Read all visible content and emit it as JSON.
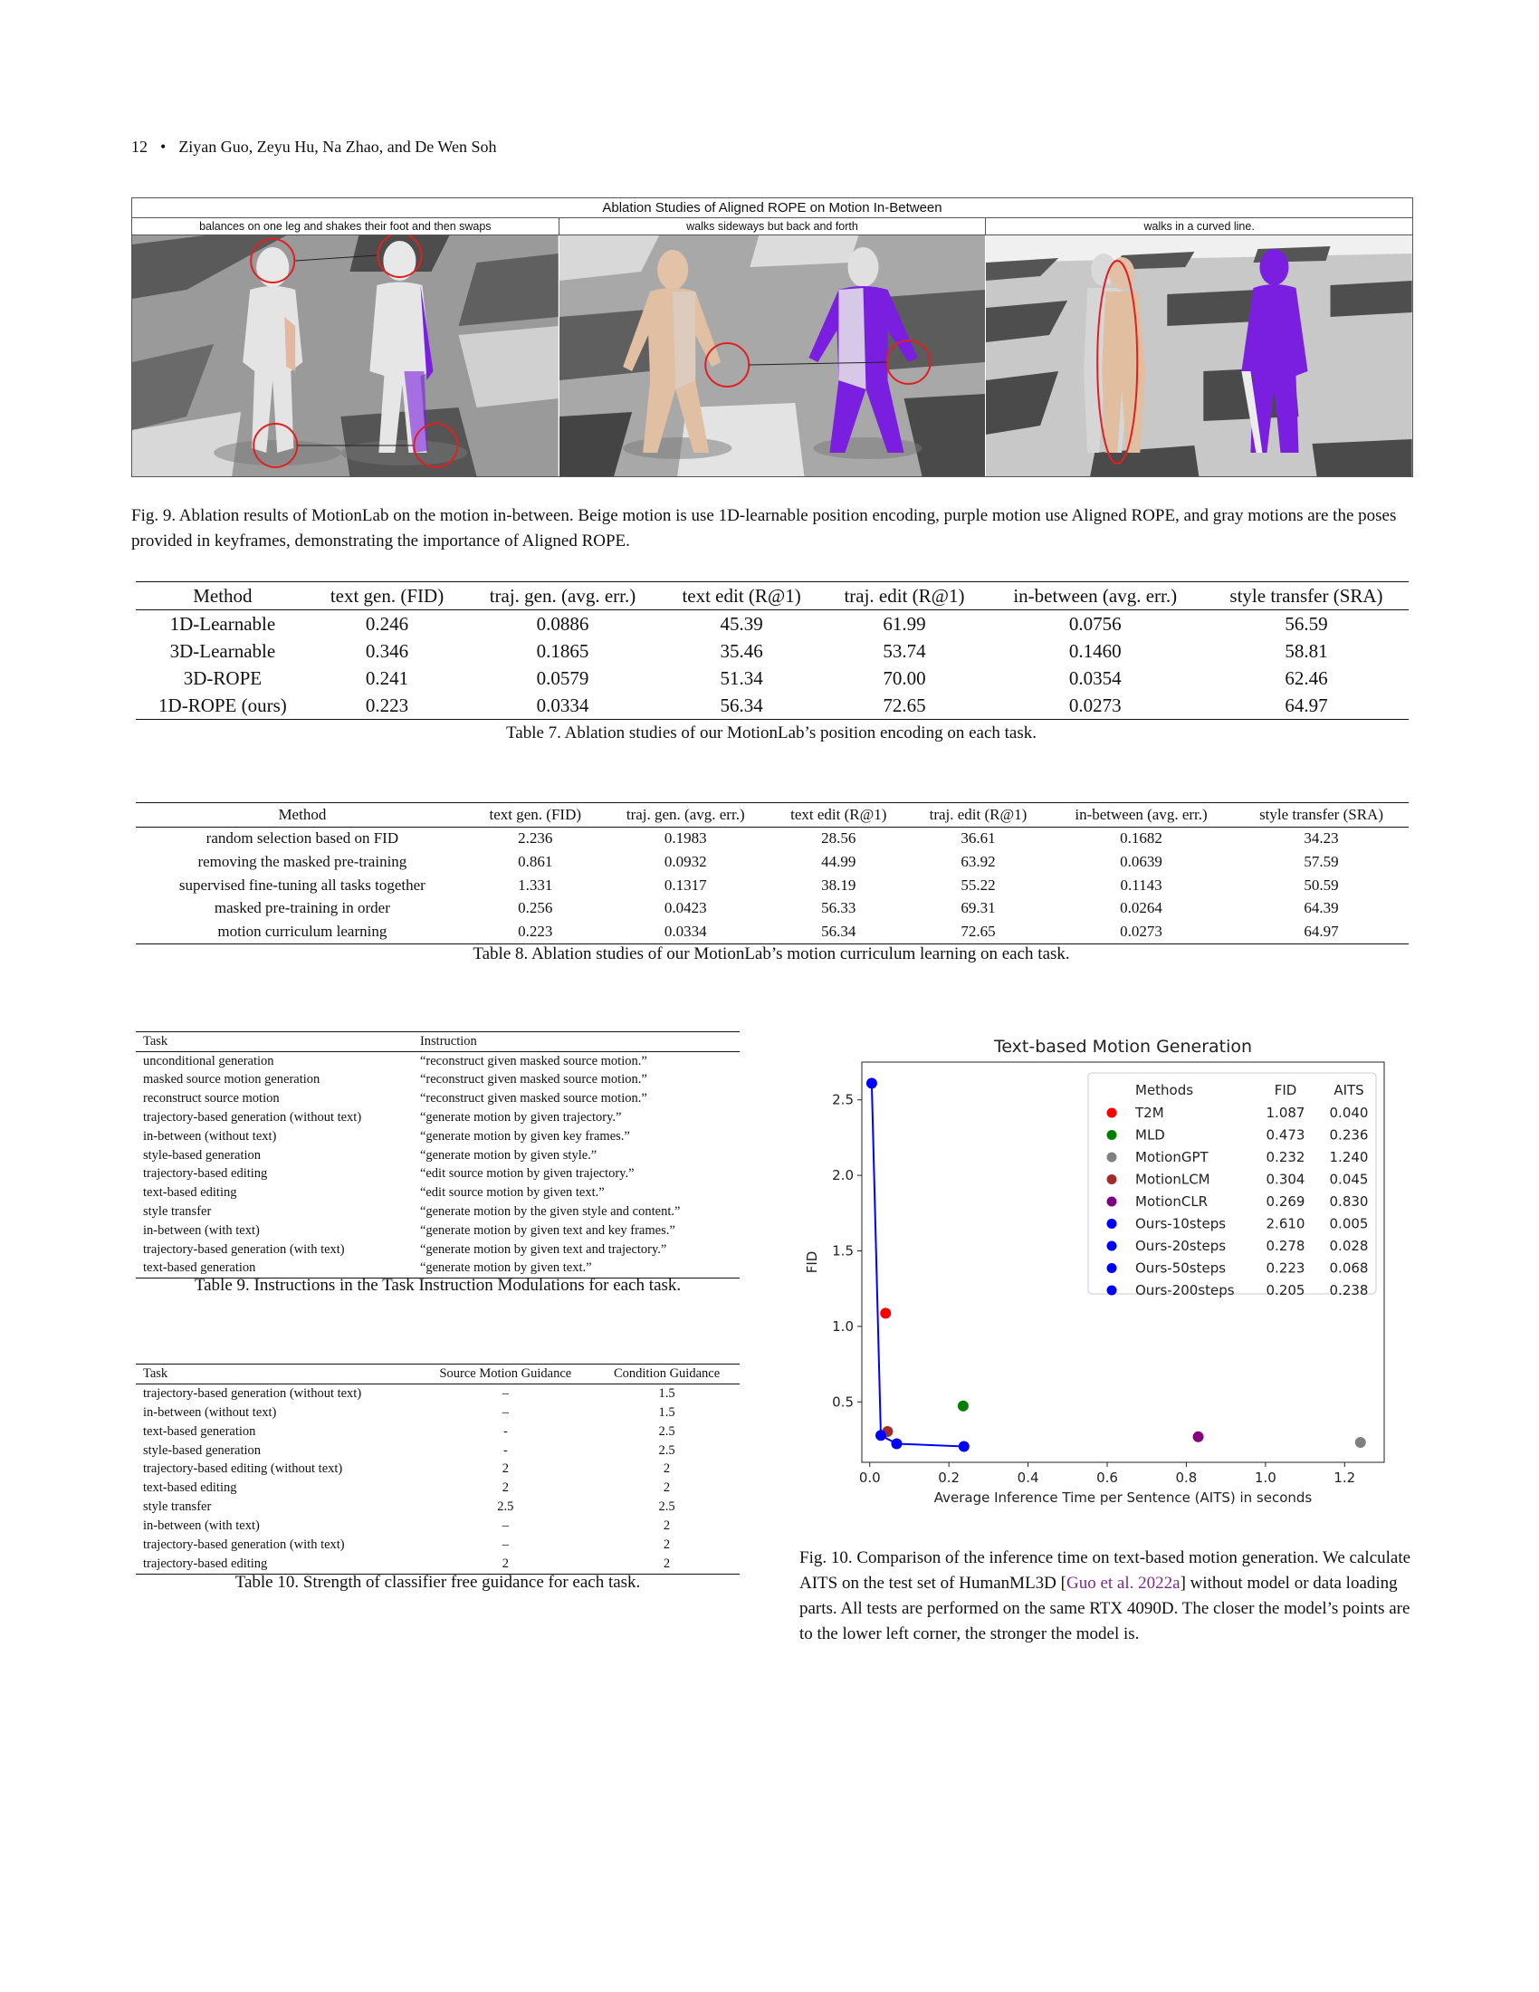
{
  "header": {
    "page_number": "12",
    "bullet": "•",
    "authors": "Ziyan Guo, Zeyu Hu, Na Zhao, and De Wen Soh"
  },
  "figure9": {
    "title": "Ablation Studies of Aligned ROPE on Motion In-Between",
    "panels": [
      {
        "caption": "balances on one leg and shakes their foot and then swaps"
      },
      {
        "caption": "walks sideways but back and forth"
      },
      {
        "caption": "walks in a curved line."
      }
    ],
    "caption": "Fig. 9.  Ablation results of MotionLab on the motion in-between. Beige motion is use 1D-learnable position encoding, purple motion use Aligned ROPE, and gray motions are the poses provided in keyframes, demonstrating the importance of Aligned ROPE."
  },
  "table7": {
    "headers": [
      "Method",
      "text gen. (FID)",
      "traj. gen. (avg. err.)",
      "text edit (R@1)",
      "traj. edit (R@1)",
      "in-between (avg. err.)",
      "style transfer (SRA)"
    ],
    "rows": [
      [
        "1D-Learnable",
        "0.246",
        "0.0886",
        "45.39",
        "61.99",
        "0.0756",
        "56.59"
      ],
      [
        "3D-Learnable",
        "0.346",
        "0.1865",
        "35.46",
        "53.74",
        "0.1460",
        "58.81"
      ],
      [
        "3D-ROPE",
        "0.241",
        "0.0579",
        "51.34",
        "70.00",
        "0.0354",
        "62.46"
      ],
      [
        "1D-ROPE (ours)",
        "0.223",
        "0.0334",
        "56.34",
        "72.65",
        "0.0273",
        "64.97"
      ]
    ],
    "caption": "Table 7.  Ablation studies of our MotionLab’s position encoding on each task."
  },
  "table8": {
    "headers": [
      "Method",
      "text gen. (FID)",
      "traj. gen. (avg. err.)",
      "text edit (R@1)",
      "traj. edit (R@1)",
      "in-between (avg. err.)",
      "style transfer (SRA)"
    ],
    "rows": [
      [
        "random selection based on FID",
        "2.236",
        "0.1983",
        "28.56",
        "36.61",
        "0.1682",
        "34.23"
      ],
      [
        "removing the masked pre-training",
        "0.861",
        "0.0932",
        "44.99",
        "63.92",
        "0.0639",
        "57.59"
      ],
      [
        "supervised fine-tuning all tasks together",
        "1.331",
        "0.1317",
        "38.19",
        "55.22",
        "0.1143",
        "50.59"
      ],
      [
        "masked pre-training in order",
        "0.256",
        "0.0423",
        "56.33",
        "69.31",
        "0.0264",
        "64.39"
      ],
      [
        "motion curriculum learning",
        "0.223",
        "0.0334",
        "56.34",
        "72.65",
        "0.0273",
        "64.97"
      ]
    ],
    "caption": "Table 8.  Ablation studies of our MotionLab’s motion curriculum learning on each task."
  },
  "table9": {
    "headers": [
      "Task",
      "Instruction"
    ],
    "rows": [
      [
        "unconditional generation",
        "“reconstruct given masked source motion.”"
      ],
      [
        "masked source motion generation",
        "“reconstruct given masked source motion.”"
      ],
      [
        "reconstruct source motion",
        "“reconstruct given masked source motion.”"
      ],
      [
        "trajectory-based generation (without text)",
        "“generate motion by given trajectory.”"
      ],
      [
        "in-between (without text)",
        "“generate motion by given key frames.”"
      ],
      [
        "style-based generation",
        "“generate motion by given style.”"
      ],
      [
        "trajectory-based editing",
        "“edit source motion by given trajectory.”"
      ],
      [
        "text-based editing",
        "“edit source motion by given text.”"
      ],
      [
        "style transfer",
        "“generate motion by the given style and content.”"
      ],
      [
        "in-between (with text)",
        "“generate motion by given text and key frames.”"
      ],
      [
        "trajectory-based generation (with text)",
        "“generate motion by given text and trajectory.”"
      ],
      [
        "text-based generation",
        "“generate motion by given text.”"
      ]
    ],
    "caption": "Table 9.  Instructions in the Task Instruction Modulations for each task."
  },
  "table10": {
    "headers": [
      "Task",
      "Source Motion Guidance",
      "Condition Guidance"
    ],
    "rows": [
      [
        "trajectory-based generation (without text)",
        "–",
        "1.5"
      ],
      [
        "in-between (without text)",
        "–",
        "1.5"
      ],
      [
        "text-based generation",
        "-",
        "2.5"
      ],
      [
        "style-based generation",
        "-",
        "2.5"
      ],
      [
        "trajectory-based editing (without text)",
        "2",
        "2"
      ],
      [
        "text-based editing",
        "2",
        "2"
      ],
      [
        "style transfer",
        "2.5",
        "2.5"
      ],
      [
        "in-between (with text)",
        "–",
        "2"
      ],
      [
        "trajectory-based generation (with text)",
        "–",
        "2"
      ],
      [
        "trajectory-based editing",
        "2",
        "2"
      ]
    ],
    "caption": "Table 10.  Strength of classifier free guidance for each task."
  },
  "figure10": {
    "caption_before": "Fig. 10.  Comparison of the inference time on text-based motion generation. We calculate AITS on the test set of HumanML3D [",
    "citation": "Guo et al. 2022a",
    "caption_after": "] without model or data loading parts. All tests are performed on the same RTX 4090D. The closer the model’s points are to the lower left corner, the stronger the model is."
  },
  "chart_data": {
    "type": "scatter",
    "title": "Text-based Motion Generation",
    "xlabel": "Average Inference Time per Sentence (AITS) in seconds",
    "ylabel": "FID",
    "xlim": [
      -0.02,
      1.3
    ],
    "ylim": [
      0.1,
      2.75
    ],
    "xticks": [
      "0.0",
      "0.2",
      "0.4",
      "0.6",
      "0.8",
      "1.0",
      "1.2"
    ],
    "yticks": [
      "0.5",
      "1.0",
      "1.5",
      "2.0",
      "2.5"
    ],
    "grid": false,
    "legend_position": "top-right",
    "legend_headers": [
      "Methods",
      "FID",
      "AITS"
    ],
    "series": [
      {
        "name": "T2M",
        "fid": 1.087,
        "aits": 0.04,
        "fid_label": "1.087",
        "aits_label": "0.040",
        "color": "#ff0000"
      },
      {
        "name": "MLD",
        "fid": 0.473,
        "aits": 0.236,
        "fid_label": "0.473",
        "aits_label": "0.236",
        "color": "#008000"
      },
      {
        "name": "MotionGPT",
        "fid": 0.232,
        "aits": 1.24,
        "fid_label": "0.232",
        "aits_label": "1.240",
        "color": "#808080"
      },
      {
        "name": "MotionLCM",
        "fid": 0.304,
        "aits": 0.045,
        "fid_label": "0.304",
        "aits_label": "0.045",
        "color": "#a52a2a"
      },
      {
        "name": "MotionCLR",
        "fid": 0.269,
        "aits": 0.83,
        "fid_label": "0.269",
        "aits_label": "0.830",
        "color": "#800080"
      },
      {
        "name": "Ours-10steps",
        "fid": 2.61,
        "aits": 0.005,
        "fid_label": "2.610",
        "aits_label": "0.005",
        "color": "#0000ff"
      },
      {
        "name": "Ours-20steps",
        "fid": 0.278,
        "aits": 0.028,
        "fid_label": "0.278",
        "aits_label": "0.028",
        "color": "#0000ff"
      },
      {
        "name": "Ours-50steps",
        "fid": 0.223,
        "aits": 0.068,
        "fid_label": "0.223",
        "aits_label": "0.068",
        "color": "#0000ff"
      },
      {
        "name": "Ours-200steps",
        "fid": 0.205,
        "aits": 0.238,
        "fid_label": "0.205",
        "aits_label": "0.238",
        "color": "#0000ff"
      }
    ],
    "connected_line": [
      "Ours-10steps",
      "Ours-20steps",
      "Ours-50steps",
      "Ours-200steps"
    ],
    "line_color": "#0000ff"
  }
}
